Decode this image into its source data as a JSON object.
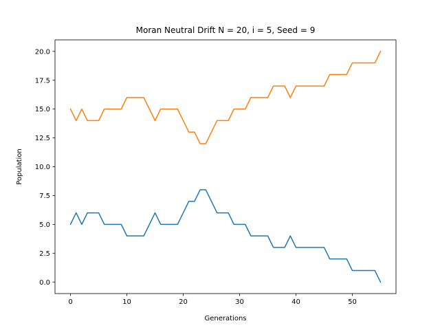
{
  "chart_data": {
    "type": "line",
    "title": "Moran Neutral Drift N = 20, i = 5, Seed = 9",
    "xlabel": "Generations",
    "ylabel": "Population",
    "xlim": [
      -2.75,
      57.75
    ],
    "ylim": [
      -1,
      21
    ],
    "xticks": [
      0,
      10,
      20,
      30,
      40,
      50
    ],
    "xtick_labels": [
      "0",
      "10",
      "20",
      "30",
      "40",
      "50"
    ],
    "yticks": [
      0,
      2.5,
      5,
      7.5,
      10,
      12.5,
      15,
      17.5,
      20
    ],
    "ytick_labels": [
      "0.0",
      "2.5",
      "5.0",
      "7.5",
      "10.0",
      "12.5",
      "15.0",
      "17.5",
      "20.0"
    ],
    "grid": false,
    "legend": false,
    "x": [
      0,
      1,
      2,
      3,
      4,
      5,
      6,
      7,
      8,
      9,
      10,
      11,
      12,
      13,
      14,
      15,
      16,
      17,
      18,
      19,
      20,
      21,
      22,
      23,
      24,
      25,
      26,
      27,
      28,
      29,
      30,
      31,
      32,
      33,
      34,
      35,
      36,
      37,
      38,
      39,
      40,
      41,
      42,
      43,
      44,
      45,
      46,
      47,
      48,
      49,
      50,
      51,
      52,
      53,
      54,
      55
    ],
    "series": [
      {
        "color": "#1f77b4",
        "values": [
          5,
          6,
          5,
          6,
          6,
          6,
          5,
          5,
          5,
          5,
          4,
          4,
          4,
          4,
          5,
          6,
          5,
          5,
          5,
          5,
          6,
          7,
          7,
          8,
          8,
          7,
          6,
          6,
          6,
          5,
          5,
          5,
          4,
          4,
          4,
          4,
          3,
          3,
          3,
          4,
          3,
          3,
          3,
          3,
          3,
          3,
          2,
          2,
          2,
          2,
          1,
          1,
          1,
          1,
          1,
          0
        ]
      },
      {
        "color": "#ff7f0e",
        "values": [
          15,
          14,
          15,
          14,
          14,
          14,
          15,
          15,
          15,
          15,
          16,
          16,
          16,
          16,
          15,
          14,
          15,
          15,
          15,
          15,
          14,
          13,
          13,
          12,
          12,
          13,
          14,
          14,
          14,
          15,
          15,
          15,
          16,
          16,
          16,
          16,
          17,
          17,
          17,
          16,
          17,
          17,
          17,
          17,
          17,
          17,
          18,
          18,
          18,
          18,
          19,
          19,
          19,
          19,
          19,
          20
        ]
      }
    ]
  }
}
